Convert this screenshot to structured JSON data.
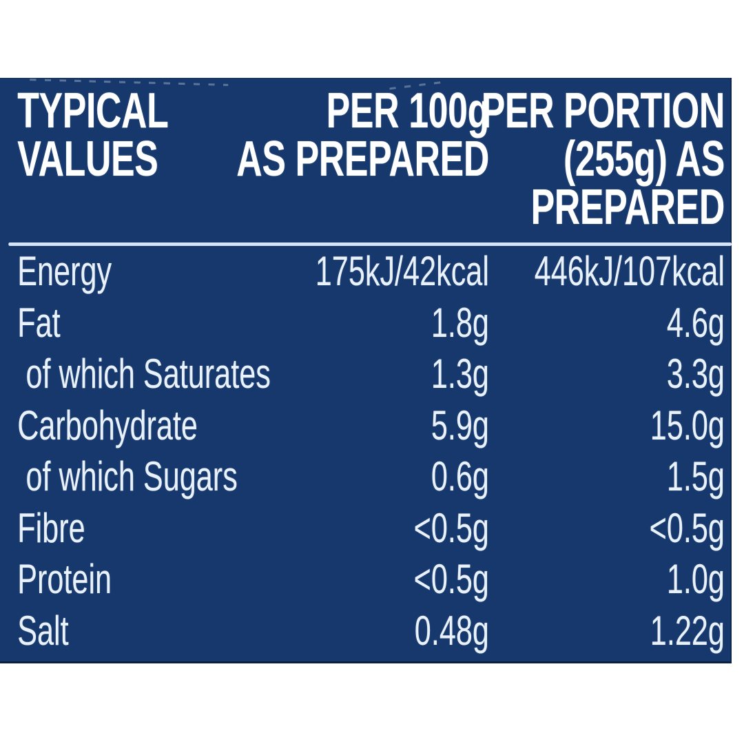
{
  "panel": {
    "colors": {
      "background": "#16386d",
      "divider": "#d6e5f5",
      "header_text": "#ffffff",
      "body_text": "#e9f2fb",
      "page_bg": "#ffffff"
    },
    "header": {
      "col1_lines": [
        "TYPICAL",
        "VALUES"
      ],
      "col2_lines": [
        "PER 100g",
        "AS PREPARED"
      ],
      "col3_lines": [
        "PER PORTION",
        "(255g) AS",
        "PREPARED"
      ]
    }
  },
  "table": {
    "columns": [
      "TYPICAL VALUES",
      "PER 100g AS PREPARED",
      "PER PORTION (255g) AS PREPARED"
    ],
    "rows": [
      {
        "label": "Energy",
        "per_100g": "175kJ/42kcal",
        "per_portion": "446kJ/107kcal",
        "indented": false
      },
      {
        "label": "Fat",
        "per_100g": "1.8g",
        "per_portion": "4.6g",
        "indented": false
      },
      {
        "label": "of which Saturates",
        "per_100g": "1.3g",
        "per_portion": "3.3g",
        "indented": true
      },
      {
        "label": "Carbohydrate",
        "per_100g": "5.9g",
        "per_portion": "15.0g",
        "indented": false
      },
      {
        "label": "of which Sugars",
        "per_100g": "0.6g",
        "per_portion": "1.5g",
        "indented": true
      },
      {
        "label": "Fibre",
        "per_100g": "<0.5g",
        "per_portion": "<0.5g",
        "indented": false
      },
      {
        "label": "Protein",
        "per_100g": "<0.5g",
        "per_portion": "1.0g",
        "indented": false
      },
      {
        "label": "Salt",
        "per_100g": "0.48g",
        "per_portion": "1.22g",
        "indented": false
      }
    ]
  }
}
